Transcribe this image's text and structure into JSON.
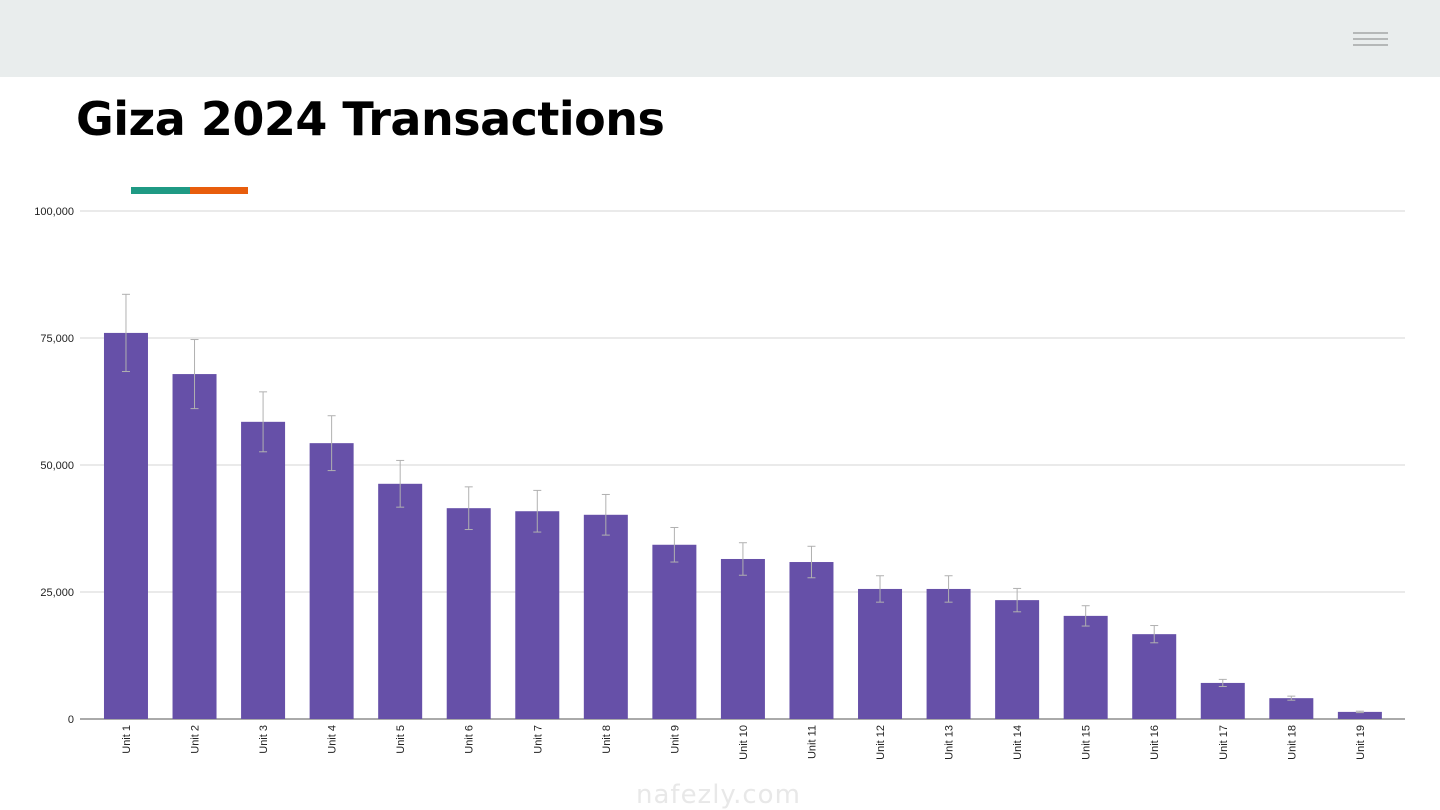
{
  "header": {
    "menu_icon": "hamburger-menu-icon"
  },
  "page_title": "Giza 2024 Transactions",
  "accent_colors": [
    "#1f9a84",
    "#e85d0c"
  ],
  "watermark": "nafezly.com",
  "chart_data": {
    "type": "bar",
    "title": "",
    "xlabel": "",
    "ylabel": "",
    "ylim": [
      0,
      100000
    ],
    "yticks": [
      0,
      25000,
      50000,
      75000,
      100000
    ],
    "ytick_labels": [
      "0",
      "25,000",
      "50,000",
      "75,000",
      "100,000"
    ],
    "grid": true,
    "bar_color": "#6650a8",
    "error_bar_color": "#b0b0b0",
    "categories": [
      "Unit 1",
      "Unit 2",
      "Unit 3",
      "Unit 4",
      "Unit 5",
      "Unit 6",
      "Unit 7",
      "Unit 8",
      "Unit 9",
      "Unit 10",
      "Unit 11",
      "Unit 12",
      "Unit 13",
      "Unit 14",
      "Unit 15",
      "Unit 16",
      "Unit 17",
      "Unit 18",
      "Unit 19"
    ],
    "values": [
      76000,
      67900,
      58500,
      54300,
      46300,
      41500,
      40900,
      40200,
      34300,
      31500,
      30900,
      25600,
      25600,
      23400,
      20300,
      16700,
      7100,
      4100,
      1400
    ],
    "error": [
      7600,
      6800,
      5900,
      5400,
      4600,
      4200,
      4100,
      4000,
      3400,
      3200,
      3100,
      2600,
      2600,
      2300,
      2000,
      1700,
      700,
      400,
      140
    ]
  }
}
